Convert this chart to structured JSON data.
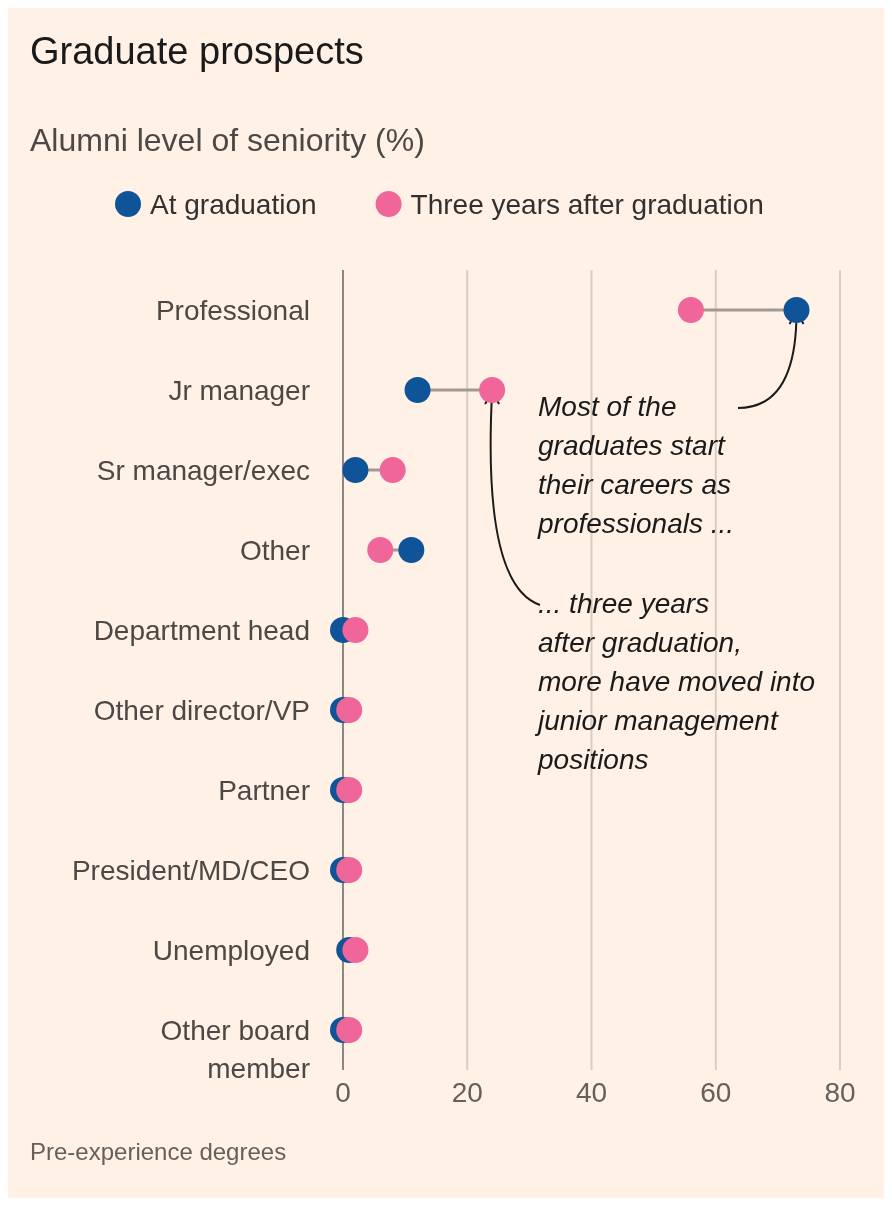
{
  "chart_data": {
    "type": "scatter",
    "title": "Graduate prospects",
    "subtitle": "Alumni level of seniority (%)",
    "orientation": "horizontal",
    "categories": [
      "Professional",
      "Jr manager",
      "Sr manager/exec",
      "Other",
      "Department head",
      "Other director/VP",
      "Partner",
      "President/MD/CEO",
      "Unemployed",
      "Other board member"
    ],
    "series": [
      {
        "name": "At graduation",
        "color": "#0f5499",
        "values": [
          73,
          12,
          2,
          11,
          0,
          0,
          0,
          0,
          1,
          0
        ]
      },
      {
        "name": "Three years after graduation",
        "color": "#f0669a",
        "values": [
          56,
          24,
          8,
          6,
          2,
          1,
          1,
          1,
          2,
          1
        ]
      }
    ],
    "xlim": [
      0,
      80
    ],
    "xticks": [
      0,
      20,
      40,
      60,
      80
    ],
    "grid": "x",
    "legend": "top",
    "marker": "circle",
    "annotations": [
      {
        "text": "Most of the graduates start their careers as professionals ...",
        "x": 73,
        "y": "Professional"
      },
      {
        "text": "... three years after graduation, more have moved into junior management positions",
        "x": 24,
        "y": "Jr manager"
      },
      "Pre-experience degrees"
    ]
  }
}
